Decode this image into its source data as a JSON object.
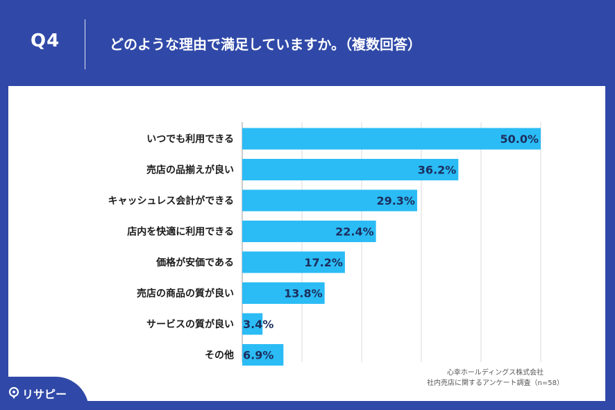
{
  "header": {
    "q_label": "Q4",
    "question": "どのような理由で満足していますか。（複数回答）"
  },
  "chart_data": {
    "type": "bar",
    "orientation": "horizontal",
    "categories": [
      "いつでも利用できる",
      "売店の品揃えが良い",
      "キャッシュレス会計ができる",
      "店内を快適に利用できる",
      "価格が安価である",
      "売店の商品の質が良い",
      "サービスの質が良い",
      "その他"
    ],
    "values": [
      50.0,
      36.2,
      29.3,
      22.4,
      17.2,
      13.8,
      3.4,
      6.9
    ],
    "value_labels": [
      "50.0%",
      "36.2%",
      "29.3%",
      "22.4%",
      "17.2%",
      "13.8%",
      "3.4%",
      "6.9%"
    ],
    "xlim": [
      0,
      50
    ],
    "grid": true,
    "bar_color": "#2bbcf5"
  },
  "source": {
    "line1": "心幸ホールディングス株式会社",
    "line2": "社内売店に関するアンケート調査（n=58）"
  },
  "logo": {
    "text": "リサピー"
  }
}
